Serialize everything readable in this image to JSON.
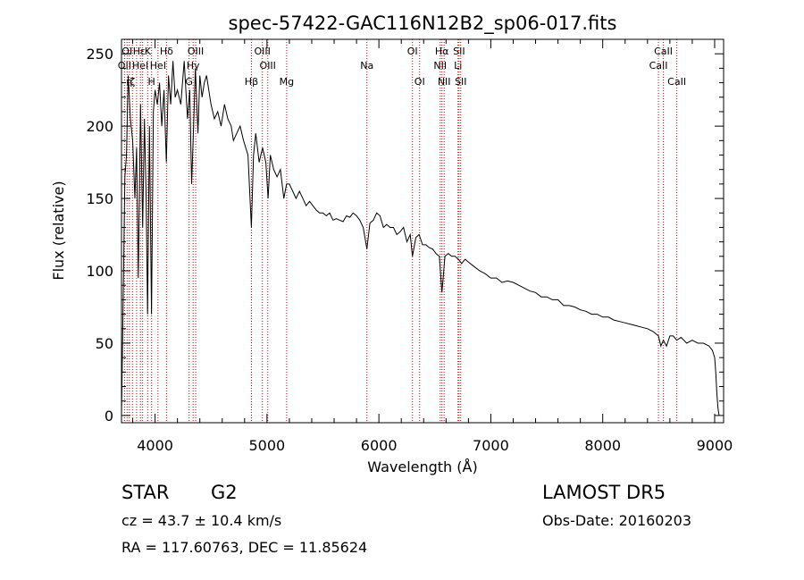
{
  "chart_data": {
    "type": "line",
    "title": "spec-57422-GAC116N12B2_sp06-017.fits",
    "xlabel": "Wavelength (Å)",
    "ylabel": "Flux (relative)",
    "xlim": [
      3700,
      9080
    ],
    "ylim": [
      -5,
      260
    ],
    "xticks": [
      4000,
      5000,
      6000,
      7000,
      8000,
      9000
    ],
    "yticks": [
      0,
      50,
      100,
      150,
      200,
      250
    ],
    "grid": false,
    "line_color": "#000000",
    "marker_color": "#cc0000",
    "series": [
      {
        "x": [
          3700,
          3715,
          3730,
          3745,
          3760,
          3780,
          3800,
          3820,
          3835,
          3850,
          3870,
          3889,
          3905,
          3920,
          3933,
          3950,
          3968,
          3985,
          4000,
          4020,
          4040,
          4060,
          4080,
          4101,
          4120,
          4140,
          4160,
          4180,
          4200,
          4230,
          4260,
          4290,
          4310,
          4327,
          4340,
          4360,
          4383,
          4400,
          4420,
          4440,
          4460,
          4480,
          4500,
          4530,
          4560,
          4590,
          4620,
          4650,
          4680,
          4700,
          4730,
          4760,
          4790,
          4810,
          4830,
          4861,
          4880,
          4900,
          4930,
          4960,
          4990,
          5010,
          5030,
          5060,
          5090,
          5120,
          5150,
          5175,
          5200,
          5230,
          5260,
          5290,
          5320,
          5350,
          5380,
          5410,
          5440,
          5470,
          5500,
          5530,
          5560,
          5590,
          5620,
          5650,
          5680,
          5710,
          5740,
          5770,
          5800,
          5830,
          5860,
          5893,
          5920,
          5950,
          5980,
          6010,
          6040,
          6070,
          6100,
          6130,
          6160,
          6190,
          6220,
          6250,
          6280,
          6300,
          6330,
          6360,
          6390,
          6420,
          6450,
          6480,
          6510,
          6540,
          6563,
          6590,
          6620,
          6650,
          6680,
          6710,
          6740,
          6770,
          6800,
          6850,
          6900,
          6950,
          7000,
          7050,
          7100,
          7150,
          7200,
          7250,
          7300,
          7350,
          7400,
          7450,
          7500,
          7550,
          7600,
          7650,
          7700,
          7750,
          7800,
          7850,
          7900,
          7950,
          8000,
          8050,
          8100,
          8150,
          8200,
          8250,
          8300,
          8350,
          8400,
          8450,
          8498,
          8520,
          8542,
          8570,
          8600,
          8630,
          8662,
          8700,
          8750,
          8800,
          8850,
          8900,
          8950,
          8980,
          9000,
          9010,
          9020,
          9030,
          9040
        ],
        "y": [
          0,
          80,
          165,
          180,
          235,
          205,
          190,
          150,
          185,
          95,
          215,
          130,
          205,
          150,
          70,
          200,
          70,
          210,
          225,
          215,
          230,
          200,
          225,
          175,
          235,
          215,
          245,
          220,
          225,
          215,
          245,
          205,
          225,
          160,
          190,
          240,
          195,
          235,
          220,
          230,
          235,
          225,
          215,
          205,
          210,
          200,
          215,
          205,
          200,
          190,
          195,
          200,
          190,
          185,
          180,
          130,
          180,
          195,
          175,
          185,
          175,
          150,
          180,
          170,
          165,
          170,
          150,
          160,
          160,
          155,
          150,
          155,
          150,
          145,
          148,
          145,
          142,
          140,
          140,
          138,
          140,
          135,
          136,
          135,
          134,
          138,
          137,
          140,
          138,
          135,
          130,
          115,
          133,
          135,
          140,
          138,
          130,
          132,
          130,
          130,
          125,
          127,
          130,
          120,
          125,
          110,
          123,
          125,
          118,
          118,
          116,
          115,
          112,
          110,
          85,
          110,
          112,
          110,
          110,
          108,
          105,
          108,
          106,
          103,
          100,
          98,
          95,
          95,
          92,
          93,
          92,
          90,
          88,
          86,
          85,
          82,
          82,
          80,
          80,
          76,
          76,
          75,
          73,
          72,
          70,
          70,
          68,
          68,
          66,
          65,
          64,
          63,
          62,
          61,
          60,
          58,
          55,
          48,
          52,
          48,
          55,
          55,
          52,
          54,
          50,
          52,
          50,
          50,
          48,
          45,
          40,
          30,
          15,
          5,
          0
        ]
      }
    ],
    "line_markers": [
      {
        "x": 3727,
        "row": 2,
        "label": "OII"
      },
      {
        "x": 3750,
        "row": 1,
        "label": "OI"
      },
      {
        "x": 3770,
        "row": 3,
        "label": "η"
      },
      {
        "x": 3798,
        "row": 3,
        "label": "ζ"
      },
      {
        "x": 3835,
        "row": 1,
        "label": "H"
      },
      {
        "x": 3869,
        "row": 2,
        "label": "HeI"
      },
      {
        "x": 3889,
        "row": 1,
        "label": "ε"
      },
      {
        "x": 3934,
        "row": 1,
        "label": "K"
      },
      {
        "x": 3969,
        "row": 3,
        "label": "H"
      },
      {
        "x": 4026,
        "row": 2,
        "label": "HeI"
      },
      {
        "x": 4102,
        "row": 1,
        "label": "Hδ"
      },
      {
        "x": 4340,
        "row": 2,
        "label": "Hγ"
      },
      {
        "x": 4304,
        "row": 3,
        "label": "G"
      },
      {
        "x": 4363,
        "row": 1,
        "label": "OIII"
      },
      {
        "x": 4861,
        "row": 3,
        "label": "Hβ"
      },
      {
        "x": 4959,
        "row": 1,
        "label": "OIII"
      },
      {
        "x": 5007,
        "row": 2,
        "label": "OIII"
      },
      {
        "x": 5176,
        "row": 3,
        "label": "Mg"
      },
      {
        "x": 5893,
        "row": 2,
        "label": "Na"
      },
      {
        "x": 6300,
        "row": 1,
        "label": "OI"
      },
      {
        "x": 6364,
        "row": 3,
        "label": "OI"
      },
      {
        "x": 6548,
        "row": 2,
        "label": "NII"
      },
      {
        "x": 6563,
        "row": 1,
        "label": "Hα"
      },
      {
        "x": 6583,
        "row": 3,
        "label": "NII"
      },
      {
        "x": 6707,
        "row": 2,
        "label": "Li"
      },
      {
        "x": 6716,
        "row": 1,
        "label": "SII"
      },
      {
        "x": 6731,
        "row": 3,
        "label": "SII"
      },
      {
        "x": 8498,
        "row": 2,
        "label": "CaII"
      },
      {
        "x": 8542,
        "row": 1,
        "label": "CaII"
      },
      {
        "x": 8662,
        "row": 3,
        "label": "CaII"
      }
    ]
  },
  "info": {
    "object_type": "STAR",
    "subclass": "G2",
    "survey": "LAMOST DR5",
    "cz": "cz = 43.7 ± 10.4 km/s",
    "obs_date": "Obs-Date: 20160203",
    "coords": "RA = 117.60763, DEC =  11.85624"
  }
}
